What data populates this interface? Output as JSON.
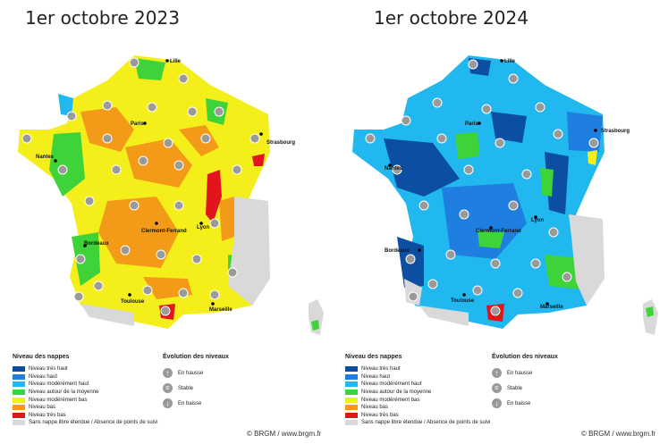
{
  "maps": [
    {
      "title": "1er octobre 2023",
      "cities": [
        "Lille",
        "Paris",
        "Strasbourg",
        "Nantes",
        "Lyon",
        "Clermont-Ferrand",
        "Bordeaux",
        "Toulouse",
        "Marseille"
      ],
      "credit": "© BRGM / www.brgm.fr"
    },
    {
      "title": "1er octobre 2024",
      "cities": [
        "Lille",
        "Paris",
        "Strasbourg",
        "Nantes",
        "Lyon",
        "Clermont-Ferrand",
        "Bordeaux",
        "Toulouse",
        "Marseille"
      ],
      "credit": "© BRGM / www.brgm.fr"
    }
  ],
  "legend": {
    "title": "Niveau des nappes",
    "items": [
      {
        "label": "Niveau très haut",
        "color": "#0b4ea2"
      },
      {
        "label": "Niveau haut",
        "color": "#1f7fe0"
      },
      {
        "label": "Niveau modérément haut",
        "color": "#20b8ee"
      },
      {
        "label": "Niveau autour de la moyenne",
        "color": "#3fd33a"
      },
      {
        "label": "Niveau modérément bas",
        "color": "#f4ef1a"
      },
      {
        "label": "Niveau bas",
        "color": "#f39a19"
      },
      {
        "label": "Niveau très bas",
        "color": "#e2141c"
      },
      {
        "label": "Sans nappe libre étendue / Absence de points de suivi",
        "color": "#d9d9d9"
      }
    ]
  },
  "evolution": {
    "title": "Évolution des niveaux",
    "items": [
      {
        "label": "En hausse",
        "icon": "arrow-up-icon"
      },
      {
        "label": "Stable",
        "icon": "equals-icon"
      },
      {
        "label": "En baisse",
        "icon": "arrow-down-icon"
      }
    ]
  }
}
